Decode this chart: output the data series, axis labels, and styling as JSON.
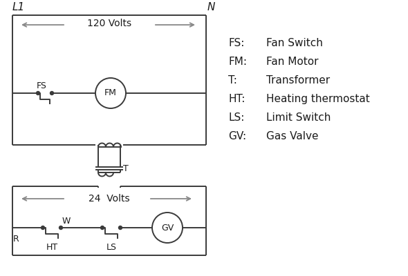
{
  "bg_color": "#ffffff",
  "line_color": "#3a3a3a",
  "arrow_color": "#888888",
  "text_color": "#1a1a1a",
  "legend_items": [
    [
      "FS:",
      "Fan Switch"
    ],
    [
      "FM:",
      "Fan Motor"
    ],
    [
      "T:",
      "Transformer"
    ],
    [
      "HT:",
      "Heating thermostat"
    ],
    [
      "LS:",
      "Limit Switch"
    ],
    [
      "GV:",
      "Gas Valve"
    ]
  ],
  "L1_label": "L1",
  "N_label": "N",
  "volts120_label": "120 Volts",
  "volts24_label": "24  Volts",
  "T_label": "T",
  "FS_label": "FS",
  "FM_label": "FM",
  "R_label": "R",
  "W_label": "W",
  "HT_label": "HT",
  "LS_label": "LS",
  "GV_label": "GV"
}
